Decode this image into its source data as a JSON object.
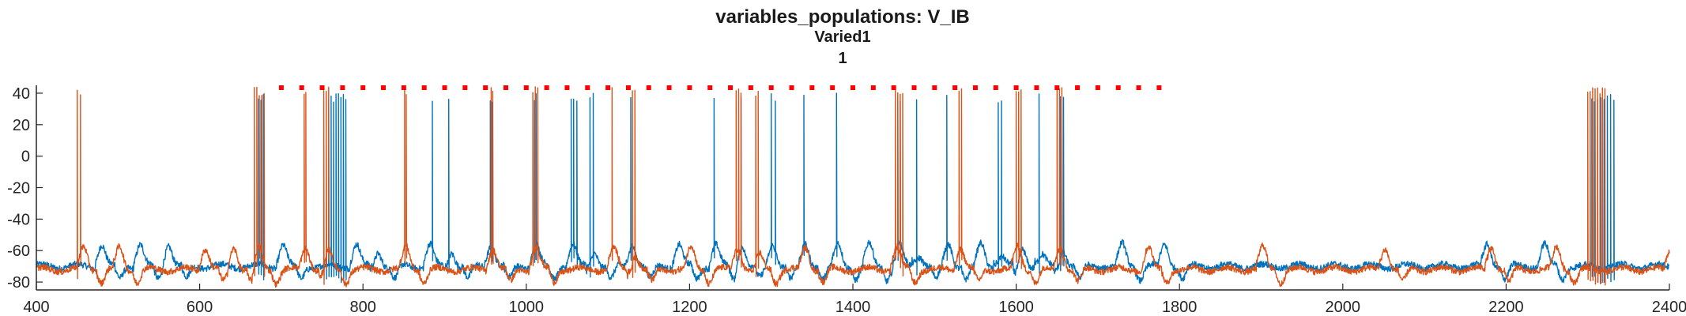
{
  "chart_data": {
    "type": "line",
    "title": "variables_populations: V_IB",
    "subtitle": "Varied1",
    "subtitle2": "1",
    "xlabel": "",
    "ylabel": "",
    "xlim": [
      400,
      2400
    ],
    "ylim": [
      -85,
      45
    ],
    "xticks": [
      "400",
      "600",
      "800",
      "1000",
      "1200",
      "1400",
      "1600",
      "1800",
      "2000",
      "2200",
      "2400"
    ],
    "yticks": [
      "40",
      "20",
      "0",
      "-20",
      "-40",
      "-60",
      "-80"
    ],
    "grid": false,
    "legend": "none",
    "colors": {
      "series1": "#0072BD",
      "series2": "#D95319",
      "markers": "#FF0000",
      "axis": "#262626"
    },
    "baseline": {
      "series1": -70,
      "series2": -72
    },
    "series": [
      {
        "color": "#0072BD",
        "spikes_x": [
          672,
          675,
          678,
          755,
          758,
          761,
          764,
          767,
          770,
          773,
          776,
          779,
          885,
          905,
          956,
          958,
          1010,
          1012,
          1055,
          1058,
          1062,
          1078,
          1082,
          1128,
          1230,
          1263,
          1300,
          1305,
          1340,
          1380,
          1455,
          1458,
          1478,
          1515,
          1578,
          1582,
          1628,
          1654,
          1658,
          2305,
          2308,
          2312,
          2316,
          2320,
          2324,
          2328,
          2332
        ],
        "bumps_x": [
          478,
          525,
          560,
          700,
          790,
          815,
          880,
          905,
          955,
          1010,
          1055,
          1080,
          1128,
          1185,
          1230,
          1262,
          1300,
          1340,
          1380,
          1418,
          1455,
          1478,
          1515,
          1555,
          1578,
          1605,
          1628,
          1654,
          1728,
          1780,
          2175,
          2245
        ]
      },
      {
        "color": "#D95319",
        "spikes_x": [
          450,
          454,
          667,
          670,
          673,
          676,
          679,
          728,
          730,
          752,
          755,
          758,
          851,
          853,
          957,
          959,
          1008,
          1011,
          1014,
          1105,
          1130,
          1133,
          1257,
          1260,
          1263,
          1281,
          1284,
          1452,
          1455,
          1458,
          1461,
          1530,
          1533,
          1600,
          1603,
          1606,
          1650,
          1653,
          1656,
          2300,
          2303,
          2306,
          2309,
          2312,
          2315,
          2318,
          2321
        ],
        "bumps_x": [
          456,
          500,
          605,
          640,
          670,
          728,
          755,
          851,
          957,
          1010,
          1105,
          1130,
          1200,
          1257,
          1282,
          1340,
          1452,
          1530,
          1600,
          1652,
          1760,
          1900,
          2050,
          2180,
          2260,
          2400
        ]
      }
    ],
    "markers": {
      "color": "#FF0000",
      "y": 43.5,
      "x": [
        700,
        725,
        750,
        775,
        800,
        825,
        850,
        875,
        900,
        925,
        950,
        975,
        1000,
        1025,
        1050,
        1075,
        1100,
        1125,
        1150,
        1175,
        1200,
        1225,
        1250,
        1275,
        1300,
        1325,
        1350,
        1375,
        1400,
        1425,
        1450,
        1475,
        1500,
        1525,
        1550,
        1575,
        1600,
        1625,
        1650,
        1675,
        1700,
        1725,
        1750,
        1775
      ]
    }
  }
}
